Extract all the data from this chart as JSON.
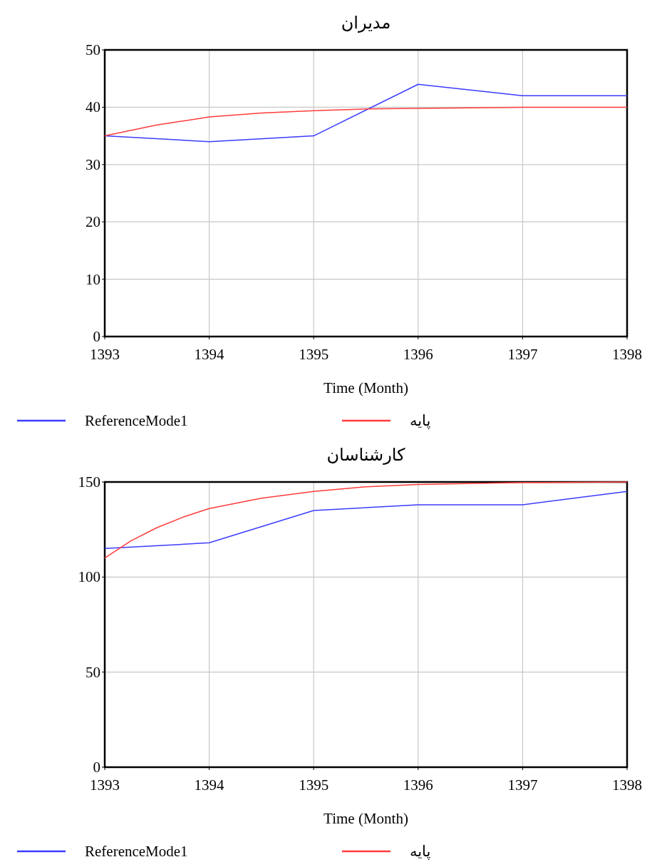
{
  "chart_data": [
    {
      "type": "line",
      "title": "مدیران",
      "xlabel": "Time (Month)",
      "xlim": [
        1393,
        1398
      ],
      "xticks": [
        1393,
        1394,
        1395,
        1396,
        1397,
        1398
      ],
      "ylim": [
        0,
        50
      ],
      "yticks": [
        0,
        10,
        20,
        30,
        40,
        50
      ],
      "grid": true,
      "legend": "bottom",
      "marker": "none",
      "line_style": "solid",
      "series": [
        {
          "name": "ReferenceMode1",
          "color": "#3c3cff",
          "x": [
            1393,
            1394,
            1395,
            1396,
            1397,
            1398
          ],
          "values": [
            35,
            34,
            35,
            44,
            42,
            42
          ]
        },
        {
          "name": "پایه",
          "color": "#ff3c3c",
          "x": [
            1393,
            1393.5,
            1394,
            1394.5,
            1395,
            1395.5,
            1396,
            1397,
            1398
          ],
          "values": [
            35,
            36.9,
            38.3,
            39,
            39.4,
            39.7,
            39.8,
            40,
            40
          ]
        }
      ]
    },
    {
      "type": "line",
      "title": "کارشناسان",
      "xlabel": "Time (Month)",
      "xlim": [
        1393,
        1398
      ],
      "xticks": [
        1393,
        1394,
        1395,
        1396,
        1397,
        1398
      ],
      "ylim": [
        0,
        150
      ],
      "yticks": [
        0,
        50,
        100,
        150
      ],
      "grid": true,
      "legend": "bottom",
      "marker": "none",
      "line_style": "solid",
      "series": [
        {
          "name": "ReferenceMode1",
          "color": "#3c3cff",
          "x": [
            1393,
            1394,
            1395,
            1396,
            1397,
            1398
          ],
          "values": [
            115,
            118,
            135,
            138,
            138,
            145
          ]
        },
        {
          "name": "پایه",
          "color": "#ff3c3c",
          "x": [
            1393,
            1393.25,
            1393.5,
            1393.75,
            1394,
            1394.5,
            1395,
            1395.5,
            1396,
            1397,
            1398
          ],
          "values": [
            110,
            119,
            126,
            131.5,
            136,
            141.5,
            145,
            147.5,
            148.7,
            149.7,
            150
          ]
        }
      ]
    }
  ]
}
